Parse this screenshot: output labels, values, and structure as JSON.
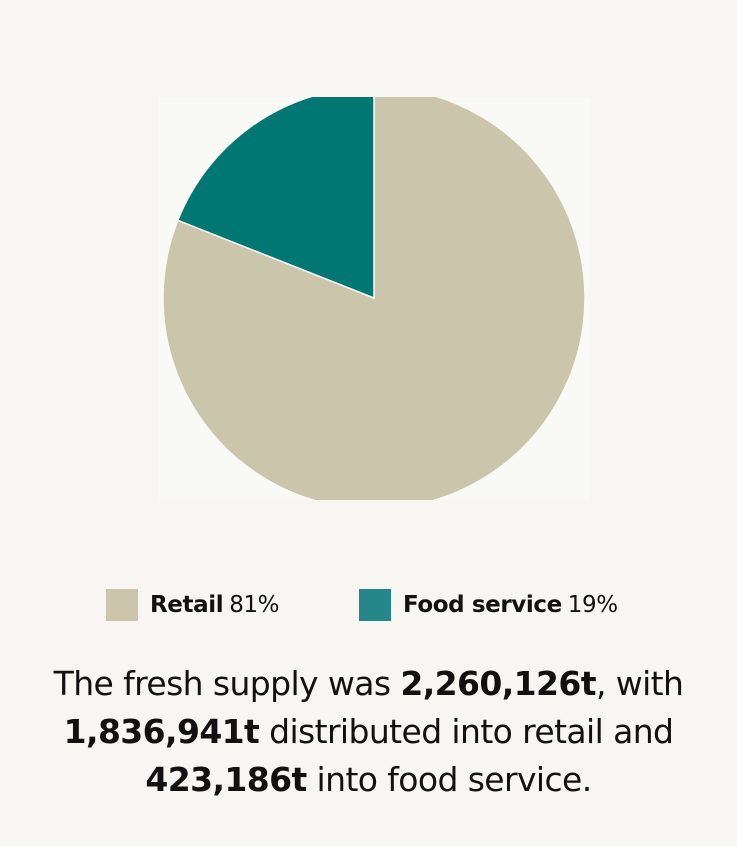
{
  "chart_data": {
    "type": "pie",
    "slices": [
      {
        "label": "Retail",
        "value": 81,
        "value_label": "81%",
        "color": "#cbc6ab"
      },
      {
        "label": "Food service",
        "value": 19,
        "value_label": "19%",
        "color": "#017774"
      }
    ],
    "start": "12 o'clock",
    "direction": "clockwise",
    "legend_position": "bottom"
  },
  "legend": [
    {
      "name": "Retail",
      "value": "81%",
      "color": "#cbc6ab"
    },
    {
      "name": "Food service",
      "value": "19%",
      "color": "#26878a"
    }
  ],
  "summary": {
    "l1_a": "The fresh supply was ",
    "l1_b": "2,260,126t",
    "l1_c": ", with",
    "l2_a": "1,836,941t",
    "l2_b": " distributed into retail and",
    "l3_a": "423,186t",
    "l3_b": " into food service."
  }
}
